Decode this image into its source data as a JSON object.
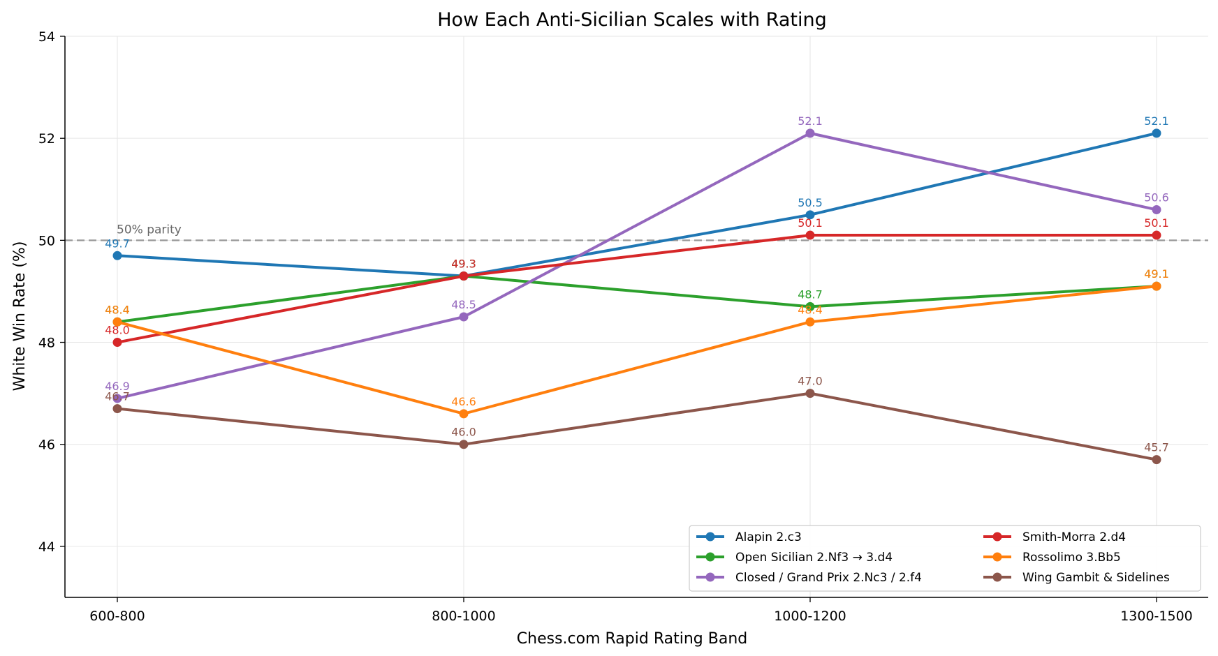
{
  "chart_data": {
    "type": "line",
    "title": "How Each Anti-Sicilian Scales with Rating",
    "xlabel": "Chess.com Rapid Rating Band",
    "ylabel": "White Win Rate (%)",
    "categories": [
      "600-800",
      "800-1000",
      "1000-1200",
      "1300-1500"
    ],
    "ylim": [
      43,
      54
    ],
    "yticks": [
      44,
      46,
      48,
      50,
      52,
      54
    ],
    "grid": true,
    "legend_position": "bottom-right",
    "reference_line": {
      "value": 50,
      "label": "50% parity",
      "color": "#999999"
    },
    "series": [
      {
        "name": "Alapin 2.c3",
        "color": "#1f77b4",
        "values": [
          49.7,
          49.3,
          50.5,
          52.1
        ],
        "labels": [
          "49.7",
          "49.3",
          "50.5",
          "52.1"
        ]
      },
      {
        "name": "Open Sicilian 2.Nf3 → 3.d4",
        "color": "#2ca02c",
        "values": [
          48.4,
          49.3,
          48.7,
          49.1
        ],
        "labels": [
          "48.4",
          "49.3",
          "48.7",
          "49.1"
        ]
      },
      {
        "name": "Closed / Grand Prix 2.Nc3 / 2.f4",
        "color": "#9467bd",
        "values": [
          46.9,
          48.5,
          52.1,
          50.6
        ],
        "labels": [
          "46.9",
          "48.5",
          "52.1",
          "50.6"
        ]
      },
      {
        "name": "Smith-Morra 2.d4",
        "color": "#d62728",
        "values": [
          48.0,
          49.3,
          50.1,
          50.1
        ],
        "labels": [
          "48.0",
          "49.3",
          "50.1",
          "50.1"
        ]
      },
      {
        "name": "Rossolimo 3.Bb5",
        "color": "#ff7f0e",
        "values": [
          48.4,
          46.6,
          48.4,
          49.1
        ],
        "labels": [
          "48.4",
          "46.6",
          "48.4",
          "49.1"
        ]
      },
      {
        "name": "Wing Gambit & Sidelines",
        "color": "#8c564b",
        "values": [
          46.7,
          46.0,
          47.0,
          45.7
        ],
        "labels": [
          "46.7",
          "46.0",
          "47.0",
          "45.7"
        ]
      }
    ],
    "legend_order": [
      0,
      3,
      1,
      4,
      2,
      5
    ]
  }
}
